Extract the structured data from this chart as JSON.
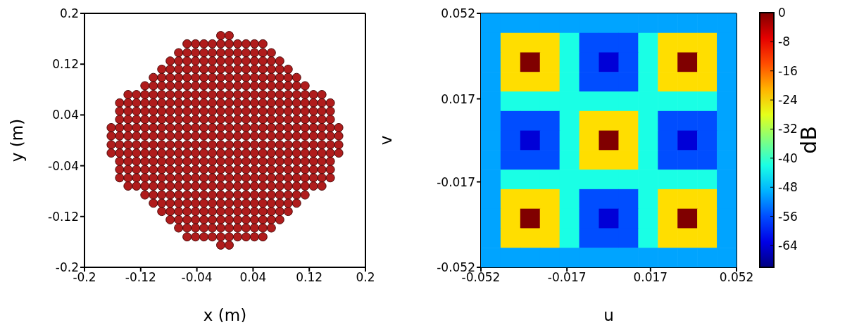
{
  "chart_data": [
    {
      "type": "scatter",
      "xlabel": "x (m)",
      "ylabel": "y (m)",
      "xlim": [
        -0.2,
        0.2
      ],
      "xticks": [
        -0.2,
        -0.12,
        -0.04,
        0.04,
        0.12,
        0.2
      ],
      "ylim": [
        -0.2,
        0.2
      ],
      "yticks": [
        -0.2,
        -0.12,
        -0.04,
        0.04,
        0.12,
        0.2
      ],
      "marker": "circle",
      "grid": false,
      "color": "#b01c1c",
      "series": [
        {
          "x": [
            -0.006,
            0.006
          ],
          "values": [
            0.165,
            0.165
          ]
        },
        {
          "x": [
            -0.054,
            -0.042,
            -0.03,
            -0.018,
            -0.006,
            0.006,
            0.018,
            0.03,
            0.042,
            0.054
          ],
          "values": [
            0.152,
            0.152,
            0.152,
            0.152,
            0.152,
            0.152,
            0.152,
            0.152,
            0.152,
            0.152
          ]
        },
        {
          "x": [
            -0.066,
            -0.054,
            -0.042,
            -0.03,
            -0.018,
            -0.006,
            0.006,
            0.018,
            0.03,
            0.042,
            0.054,
            0.066
          ],
          "values": [
            0.138,
            0.138,
            0.138,
            0.138,
            0.138,
            0.138,
            0.138,
            0.138,
            0.138,
            0.138,
            0.138,
            0.138
          ]
        },
        {
          "x": [
            -0.078,
            -0.066,
            -0.054,
            -0.042,
            -0.03,
            -0.018,
            -0.006,
            0.006,
            0.018,
            0.03,
            0.042,
            0.054,
            0.066,
            0.078
          ],
          "values": [
            0.125,
            0.125,
            0.125,
            0.125,
            0.125,
            0.125,
            0.125,
            0.125,
            0.125,
            0.125,
            0.125,
            0.125,
            0.125,
            0.125
          ]
        },
        {
          "x": [
            -0.09,
            -0.078,
            -0.066,
            -0.054,
            -0.042,
            -0.03,
            -0.018,
            -0.006,
            0.006,
            0.018,
            0.03,
            0.042,
            0.054,
            0.066,
            0.078,
            0.09
          ],
          "values": [
            0.112,
            0.112,
            0.112,
            0.112,
            0.112,
            0.112,
            0.112,
            0.112,
            0.112,
            0.112,
            0.112,
            0.112,
            0.112,
            0.112,
            0.112,
            0.112
          ]
        },
        {
          "x": [
            -0.102,
            -0.09,
            -0.078,
            -0.066,
            -0.054,
            -0.042,
            -0.03,
            -0.018,
            -0.006,
            0.006,
            0.018,
            0.03,
            0.042,
            0.054,
            0.066,
            0.078,
            0.09,
            0.102
          ],
          "values": [
            0.099,
            0.099,
            0.099,
            0.099,
            0.099,
            0.099,
            0.099,
            0.099,
            0.099,
            0.099,
            0.099,
            0.099,
            0.099,
            0.099,
            0.099,
            0.099,
            0.099,
            0.099
          ]
        },
        {
          "x": [
            -0.114,
            -0.102,
            -0.09,
            -0.078,
            -0.066,
            -0.054,
            -0.042,
            -0.03,
            -0.018,
            -0.006,
            0.006,
            0.018,
            0.03,
            0.042,
            0.054,
            0.066,
            0.078,
            0.09,
            0.102,
            0.114
          ],
          "values": [
            0.086,
            0.086,
            0.086,
            0.086,
            0.086,
            0.086,
            0.086,
            0.086,
            0.086,
            0.086,
            0.086,
            0.086,
            0.086,
            0.086,
            0.086,
            0.086,
            0.086,
            0.086,
            0.086,
            0.086
          ]
        },
        {
          "x": [
            -0.138,
            -0.126,
            -0.114,
            -0.102,
            -0.09,
            -0.078,
            -0.066,
            -0.054,
            -0.042,
            -0.03,
            -0.018,
            -0.006,
            0.006,
            0.018,
            0.03,
            0.042,
            0.054,
            0.066,
            0.078,
            0.09,
            0.102,
            0.114,
            0.126,
            0.138
          ],
          "values": [
            0.072,
            0.072,
            0.072,
            0.072,
            0.072,
            0.072,
            0.072,
            0.072,
            0.072,
            0.072,
            0.072,
            0.072,
            0.072,
            0.072,
            0.072,
            0.072,
            0.072,
            0.072,
            0.072,
            0.072,
            0.072,
            0.072,
            0.072,
            0.072
          ]
        },
        {
          "x": [
            -0.15,
            -0.138,
            -0.126,
            -0.114,
            -0.102,
            -0.09,
            -0.078,
            -0.066,
            -0.054,
            -0.042,
            -0.03,
            -0.018,
            -0.006,
            0.006,
            0.018,
            0.03,
            0.042,
            0.054,
            0.066,
            0.078,
            0.09,
            0.102,
            0.114,
            0.126,
            0.138,
            0.15
          ],
          "values": [
            0.059,
            0.059,
            0.059,
            0.059,
            0.059,
            0.059,
            0.059,
            0.059,
            0.059,
            0.059,
            0.059,
            0.059,
            0.059,
            0.059,
            0.059,
            0.059,
            0.059,
            0.059,
            0.059,
            0.059,
            0.059,
            0.059,
            0.059,
            0.059,
            0.059,
            0.059
          ]
        },
        {
          "x": [
            -0.15,
            -0.138,
            -0.126,
            -0.114,
            -0.102,
            -0.09,
            -0.078,
            -0.066,
            -0.054,
            -0.042,
            -0.03,
            -0.018,
            -0.006,
            0.006,
            0.018,
            0.03,
            0.042,
            0.054,
            0.066,
            0.078,
            0.09,
            0.102,
            0.114,
            0.126,
            0.138,
            0.15
          ],
          "values": [
            0.046,
            0.046,
            0.046,
            0.046,
            0.046,
            0.046,
            0.046,
            0.046,
            0.046,
            0.046,
            0.046,
            0.046,
            0.046,
            0.046,
            0.046,
            0.046,
            0.046,
            0.046,
            0.046,
            0.046,
            0.046,
            0.046,
            0.046,
            0.046,
            0.046,
            0.046
          ]
        },
        {
          "x": [
            -0.15,
            -0.138,
            -0.126,
            -0.114,
            -0.102,
            -0.09,
            -0.078,
            -0.066,
            -0.054,
            -0.042,
            -0.03,
            -0.018,
            -0.006,
            0.006,
            0.018,
            0.03,
            0.042,
            0.054,
            0.066,
            0.078,
            0.09,
            0.102,
            0.114,
            0.126,
            0.138,
            0.15
          ],
          "values": [
            0.033,
            0.033,
            0.033,
            0.033,
            0.033,
            0.033,
            0.033,
            0.033,
            0.033,
            0.033,
            0.033,
            0.033,
            0.033,
            0.033,
            0.033,
            0.033,
            0.033,
            0.033,
            0.033,
            0.033,
            0.033,
            0.033,
            0.033,
            0.033,
            0.033,
            0.033
          ]
        },
        {
          "x": [
            -0.162,
            -0.15,
            -0.138,
            -0.126,
            -0.114,
            -0.102,
            -0.09,
            -0.078,
            -0.066,
            -0.054,
            -0.042,
            -0.03,
            -0.018,
            -0.006,
            0.006,
            0.018,
            0.03,
            0.042,
            0.054,
            0.066,
            0.078,
            0.09,
            0.102,
            0.114,
            0.126,
            0.138,
            0.15,
            0.162
          ],
          "values": [
            0.02,
            0.02,
            0.02,
            0.02,
            0.02,
            0.02,
            0.02,
            0.02,
            0.02,
            0.02,
            0.02,
            0.02,
            0.02,
            0.02,
            0.02,
            0.02,
            0.02,
            0.02,
            0.02,
            0.02,
            0.02,
            0.02,
            0.02,
            0.02,
            0.02,
            0.02,
            0.02,
            0.02
          ]
        },
        {
          "x": [
            -0.162,
            -0.15,
            -0.138,
            -0.126,
            -0.114,
            -0.102,
            -0.09,
            -0.078,
            -0.066,
            -0.054,
            -0.042,
            -0.03,
            -0.018,
            -0.006,
            0.006,
            0.018,
            0.03,
            0.042,
            0.054,
            0.066,
            0.078,
            0.09,
            0.102,
            0.114,
            0.126,
            0.138,
            0.15,
            0.162
          ],
          "values": [
            0.007,
            0.007,
            0.007,
            0.007,
            0.007,
            0.007,
            0.007,
            0.007,
            0.007,
            0.007,
            0.007,
            0.007,
            0.007,
            0.007,
            0.007,
            0.007,
            0.007,
            0.007,
            0.007,
            0.007,
            0.007,
            0.007,
            0.007,
            0.007,
            0.007,
            0.007,
            0.007,
            0.007
          ]
        },
        {
          "x": [
            -0.162,
            -0.15,
            -0.138,
            -0.126,
            -0.114,
            -0.102,
            -0.09,
            -0.078,
            -0.066,
            -0.054,
            -0.042,
            -0.03,
            -0.018,
            -0.006,
            0.006,
            0.018,
            0.03,
            0.042,
            0.054,
            0.066,
            0.078,
            0.09,
            0.102,
            0.114,
            0.126,
            0.138,
            0.15,
            0.162
          ],
          "values": [
            -0.007,
            -0.007,
            -0.007,
            -0.007,
            -0.007,
            -0.007,
            -0.007,
            -0.007,
            -0.007,
            -0.007,
            -0.007,
            -0.007,
            -0.007,
            -0.007,
            -0.007,
            -0.007,
            -0.007,
            -0.007,
            -0.007,
            -0.007,
            -0.007,
            -0.007,
            -0.007,
            -0.007,
            -0.007,
            -0.007,
            -0.007,
            -0.007
          ]
        },
        {
          "x": [
            -0.162,
            -0.15,
            -0.138,
            -0.126,
            -0.114,
            -0.102,
            -0.09,
            -0.078,
            -0.066,
            -0.054,
            -0.042,
            -0.03,
            -0.018,
            -0.006,
            0.006,
            0.018,
            0.03,
            0.042,
            0.054,
            0.066,
            0.078,
            0.09,
            0.102,
            0.114,
            0.126,
            0.138,
            0.15,
            0.162
          ],
          "values": [
            -0.02,
            -0.02,
            -0.02,
            -0.02,
            -0.02,
            -0.02,
            -0.02,
            -0.02,
            -0.02,
            -0.02,
            -0.02,
            -0.02,
            -0.02,
            -0.02,
            -0.02,
            -0.02,
            -0.02,
            -0.02,
            -0.02,
            -0.02,
            -0.02,
            -0.02,
            -0.02,
            -0.02,
            -0.02,
            -0.02,
            -0.02,
            -0.02
          ]
        },
        {
          "x": [
            -0.15,
            -0.138,
            -0.126,
            -0.114,
            -0.102,
            -0.09,
            -0.078,
            -0.066,
            -0.054,
            -0.042,
            -0.03,
            -0.018,
            -0.006,
            0.006,
            0.018,
            0.03,
            0.042,
            0.054,
            0.066,
            0.078,
            0.09,
            0.102,
            0.114,
            0.126,
            0.138,
            0.15
          ],
          "values": [
            -0.033,
            -0.033,
            -0.033,
            -0.033,
            -0.033,
            -0.033,
            -0.033,
            -0.033,
            -0.033,
            -0.033,
            -0.033,
            -0.033,
            -0.033,
            -0.033,
            -0.033,
            -0.033,
            -0.033,
            -0.033,
            -0.033,
            -0.033,
            -0.033,
            -0.033,
            -0.033,
            -0.033,
            -0.033,
            -0.033
          ]
        },
        {
          "x": [
            -0.15,
            -0.138,
            -0.126,
            -0.114,
            -0.102,
            -0.09,
            -0.078,
            -0.066,
            -0.054,
            -0.042,
            -0.03,
            -0.018,
            -0.006,
            0.006,
            0.018,
            0.03,
            0.042,
            0.054,
            0.066,
            0.078,
            0.09,
            0.102,
            0.114,
            0.126,
            0.138,
            0.15
          ],
          "values": [
            -0.046,
            -0.046,
            -0.046,
            -0.046,
            -0.046,
            -0.046,
            -0.046,
            -0.046,
            -0.046,
            -0.046,
            -0.046,
            -0.046,
            -0.046,
            -0.046,
            -0.046,
            -0.046,
            -0.046,
            -0.046,
            -0.046,
            -0.046,
            -0.046,
            -0.046,
            -0.046,
            -0.046,
            -0.046,
            -0.046
          ]
        },
        {
          "x": [
            -0.15,
            -0.138,
            -0.126,
            -0.114,
            -0.102,
            -0.09,
            -0.078,
            -0.066,
            -0.054,
            -0.042,
            -0.03,
            -0.018,
            -0.006,
            0.006,
            0.018,
            0.03,
            0.042,
            0.054,
            0.066,
            0.078,
            0.09,
            0.102,
            0.114,
            0.126,
            0.138,
            0.15
          ],
          "values": [
            -0.059,
            -0.059,
            -0.059,
            -0.059,
            -0.059,
            -0.059,
            -0.059,
            -0.059,
            -0.059,
            -0.059,
            -0.059,
            -0.059,
            -0.059,
            -0.059,
            -0.059,
            -0.059,
            -0.059,
            -0.059,
            -0.059,
            -0.059,
            -0.059,
            -0.059,
            -0.059,
            -0.059,
            -0.059,
            -0.059
          ]
        },
        {
          "x": [
            -0.138,
            -0.126,
            -0.114,
            -0.102,
            -0.09,
            -0.078,
            -0.066,
            -0.054,
            -0.042,
            -0.03,
            -0.018,
            -0.006,
            0.006,
            0.018,
            0.03,
            0.042,
            0.054,
            0.066,
            0.078,
            0.09,
            0.102,
            0.114,
            0.126,
            0.138
          ],
          "values": [
            -0.072,
            -0.072,
            -0.072,
            -0.072,
            -0.072,
            -0.072,
            -0.072,
            -0.072,
            -0.072,
            -0.072,
            -0.072,
            -0.072,
            -0.072,
            -0.072,
            -0.072,
            -0.072,
            -0.072,
            -0.072,
            -0.072,
            -0.072,
            -0.072,
            -0.072,
            -0.072,
            -0.072
          ]
        },
        {
          "x": [
            -0.114,
            -0.102,
            -0.09,
            -0.078,
            -0.066,
            -0.054,
            -0.042,
            -0.03,
            -0.018,
            -0.006,
            0.006,
            0.018,
            0.03,
            0.042,
            0.054,
            0.066,
            0.078,
            0.09,
            0.102,
            0.114
          ],
          "values": [
            -0.086,
            -0.086,
            -0.086,
            -0.086,
            -0.086,
            -0.086,
            -0.086,
            -0.086,
            -0.086,
            -0.086,
            -0.086,
            -0.086,
            -0.086,
            -0.086,
            -0.086,
            -0.086,
            -0.086,
            -0.086,
            -0.086,
            -0.086
          ]
        },
        {
          "x": [
            -0.102,
            -0.09,
            -0.078,
            -0.066,
            -0.054,
            -0.042,
            -0.03,
            -0.018,
            -0.006,
            0.006,
            0.018,
            0.03,
            0.042,
            0.054,
            0.066,
            0.078,
            0.09,
            0.102
          ],
          "values": [
            -0.099,
            -0.099,
            -0.099,
            -0.099,
            -0.099,
            -0.099,
            -0.099,
            -0.099,
            -0.099,
            -0.099,
            -0.099,
            -0.099,
            -0.099,
            -0.099,
            -0.099,
            -0.099,
            -0.099,
            -0.099
          ]
        },
        {
          "x": [
            -0.09,
            -0.078,
            -0.066,
            -0.054,
            -0.042,
            -0.03,
            -0.018,
            -0.006,
            0.006,
            0.018,
            0.03,
            0.042,
            0.054,
            0.066,
            0.078,
            0.09
          ],
          "values": [
            -0.112,
            -0.112,
            -0.112,
            -0.112,
            -0.112,
            -0.112,
            -0.112,
            -0.112,
            -0.112,
            -0.112,
            -0.112,
            -0.112,
            -0.112,
            -0.112,
            -0.112,
            -0.112
          ]
        },
        {
          "x": [
            -0.078,
            -0.066,
            -0.054,
            -0.042,
            -0.03,
            -0.018,
            -0.006,
            0.006,
            0.018,
            0.03,
            0.042,
            0.054,
            0.066,
            0.078
          ],
          "values": [
            -0.125,
            -0.125,
            -0.125,
            -0.125,
            -0.125,
            -0.125,
            -0.125,
            -0.125,
            -0.125,
            -0.125,
            -0.125,
            -0.125,
            -0.125,
            -0.125
          ]
        },
        {
          "x": [
            -0.066,
            -0.054,
            -0.042,
            -0.03,
            -0.018,
            -0.006,
            0.006,
            0.018,
            0.03,
            0.042,
            0.054,
            0.066
          ],
          "values": [
            -0.138,
            -0.138,
            -0.138,
            -0.138,
            -0.138,
            -0.138,
            -0.138,
            -0.138,
            -0.138,
            -0.138,
            -0.138,
            -0.138
          ]
        },
        {
          "x": [
            -0.054,
            -0.042,
            -0.03,
            -0.018,
            -0.006,
            0.006,
            0.018,
            0.03,
            0.042,
            0.054
          ],
          "values": [
            -0.152,
            -0.152,
            -0.152,
            -0.152,
            -0.152,
            -0.152,
            -0.152,
            -0.152,
            -0.152,
            -0.152
          ]
        },
        {
          "x": [
            -0.006,
            0.006
          ],
          "values": [
            -0.165,
            -0.165
          ]
        }
      ]
    },
    {
      "type": "heatmap",
      "xlabel": "u",
      "ylabel": "v",
      "clabel": "dB",
      "x": [
        -0.048,
        -0.04,
        -0.032,
        -0.024,
        -0.016,
        -0.008,
        0,
        0.008,
        0.016,
        0.024,
        0.032,
        0.04,
        0.048
      ],
      "xlim": [
        -0.052,
        0.052
      ],
      "xticks": [
        -0.052,
        -0.017,
        0.017,
        0.052
      ],
      "ylim": [
        -0.052,
        0.052
      ],
      "yticks": [
        -0.052,
        -0.017,
        0.017,
        0.052
      ],
      "clim": [
        -70,
        0
      ],
      "cticks": [
        0,
        -8,
        -16,
        -24,
        -32,
        -40,
        -48,
        -56,
        -64
      ],
      "cells": [
        [
          -50,
          -50,
          -50,
          -50,
          -50,
          -50,
          -50,
          -50,
          -50,
          -50,
          -50,
          -50,
          -50
        ],
        [
          -50,
          -24,
          -24,
          -24,
          -42,
          -56,
          -56,
          -56,
          -42,
          -24,
          -24,
          -24,
          -50
        ],
        [
          -50,
          -24,
          0,
          -24,
          -42,
          -56,
          -64,
          -56,
          -42,
          -24,
          0,
          -24,
          -50
        ],
        [
          -50,
          -24,
          -24,
          -24,
          -42,
          -56,
          -56,
          -56,
          -42,
          -24,
          -24,
          -24,
          -50
        ],
        [
          -50,
          -42,
          -42,
          -42,
          -42,
          -42,
          -42,
          -42,
          -42,
          -42,
          -42,
          -42,
          -50
        ],
        [
          -50,
          -56,
          -56,
          -56,
          -42,
          -24,
          -24,
          -24,
          -42,
          -56,
          -56,
          -56,
          -50
        ],
        [
          -50,
          -56,
          -64,
          -56,
          -42,
          -24,
          0,
          -24,
          -42,
          -56,
          -64,
          -56,
          -50
        ],
        [
          -50,
          -56,
          -56,
          -56,
          -42,
          -24,
          -24,
          -24,
          -42,
          -56,
          -56,
          -56,
          -50
        ],
        [
          -50,
          -42,
          -42,
          -42,
          -42,
          -42,
          -42,
          -42,
          -42,
          -42,
          -42,
          -42,
          -50
        ],
        [
          -50,
          -24,
          -24,
          -24,
          -42,
          -56,
          -56,
          -56,
          -42,
          -24,
          -24,
          -24,
          -50
        ],
        [
          -50,
          -24,
          0,
          -24,
          -42,
          -56,
          -64,
          -56,
          -42,
          -24,
          0,
          -24,
          -50
        ],
        [
          -50,
          -24,
          -24,
          -24,
          -42,
          -56,
          -56,
          -56,
          -42,
          -24,
          -24,
          -24,
          -50
        ],
        [
          -50,
          -50,
          -50,
          -50,
          -50,
          -50,
          -50,
          -50,
          -50,
          -50,
          -50,
          -50,
          -50
        ]
      ]
    }
  ]
}
